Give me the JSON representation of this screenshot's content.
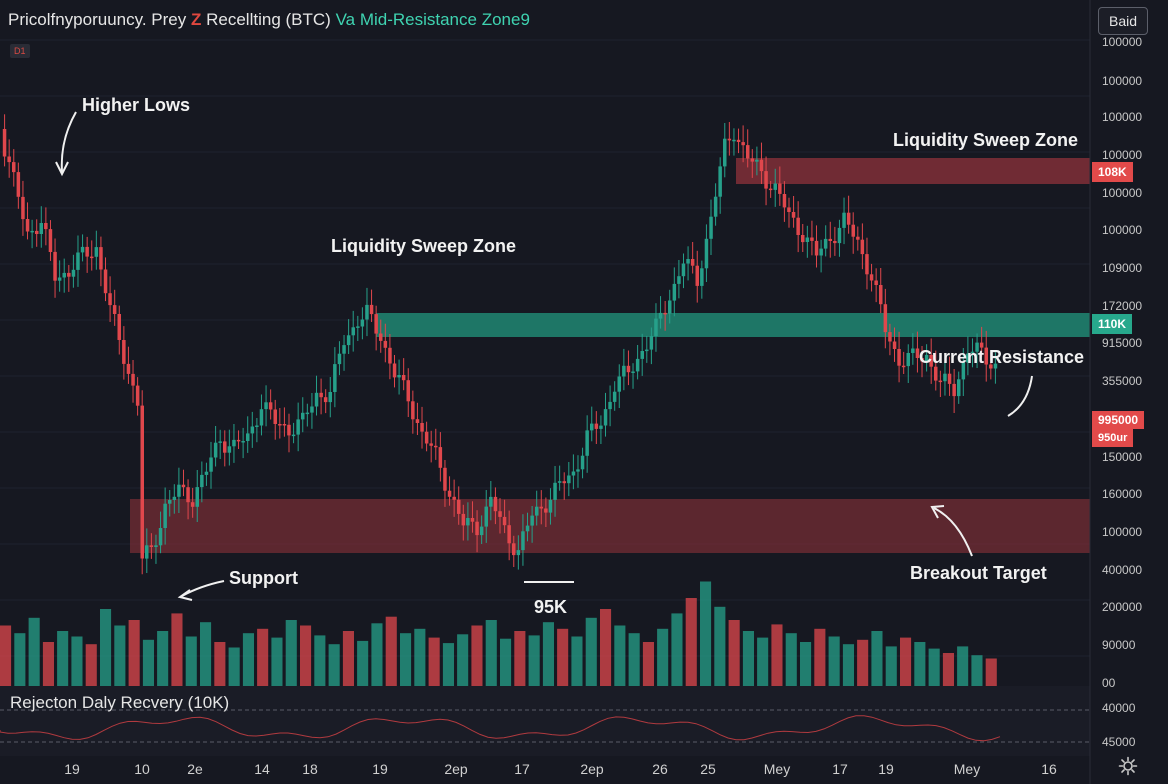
{
  "header": {
    "title_part1": "Pricolfnyporuuncy. Prey",
    "title_z": "Z",
    "title_part2": " Recellting (BTC)",
    "title_part3": " Va Mid-Resistance Zone9",
    "timeframe_badge": "D1",
    "bid_button": "Baid"
  },
  "indicator": {
    "label": "Rejecton Daly Recvery (10K)"
  },
  "annotations": {
    "higher_lows": "Higher Lows",
    "liquidity_sweep_left": "Liquidity Sweep Zone",
    "liquidity_sweep_right": "Liquidity Sweep Zone",
    "current_resistance": "Current Resistance",
    "support": "Support",
    "breakout_target": "Breakout Target",
    "level_95k": "95K"
  },
  "price_tags": {
    "red_top": "108K",
    "green": "110K",
    "current_a": "995000",
    "current_b": "950ur"
  },
  "colors": {
    "background": "#161821",
    "bull": "#26a08a",
    "bear": "#e0474c",
    "zone_red": "#7a2e36",
    "zone_green": "#1f7f6c"
  },
  "chart_data": {
    "type": "candlestick",
    "price_axis_ticks": [
      "100000",
      "100000",
      "100000",
      "100000",
      "100000",
      "100000",
      "109000",
      "172000",
      "915000",
      "355000",
      "995000",
      "150000",
      "160000",
      "100000",
      "400000",
      "200000",
      "90000",
      "00"
    ],
    "indicator_axis_ticks": [
      "40000",
      "45000"
    ],
    "x_ticks": [
      "19",
      "10",
      "2e",
      "14",
      "18",
      "19",
      "2ep",
      "17",
      "2ep",
      "26",
      "25",
      "Mey",
      "17",
      "19",
      "Mey",
      "16"
    ],
    "zones": [
      {
        "name": "Liquidity Sweep Zone (upper)",
        "color": "red",
        "level": "108K"
      },
      {
        "name": "Mid-Resistance",
        "color": "green",
        "level": "110K"
      },
      {
        "name": "Support / Breakout Target",
        "color": "red"
      }
    ],
    "close_path": [
      [
        0,
        0.1
      ],
      [
        3,
        0.21
      ],
      [
        6,
        0.31
      ],
      [
        9,
        0.29
      ],
      [
        12,
        0.4
      ],
      [
        15,
        0.39
      ],
      [
        18,
        0.36
      ],
      [
        21,
        0.34
      ],
      [
        24,
        0.47
      ],
      [
        27,
        0.56
      ],
      [
        30,
        0.66
      ],
      [
        31,
        0.98
      ],
      [
        33,
        0.96
      ],
      [
        36,
        0.87
      ],
      [
        39,
        0.84
      ],
      [
        42,
        0.85
      ],
      [
        45,
        0.8
      ],
      [
        48,
        0.73
      ],
      [
        51,
        0.75
      ],
      [
        54,
        0.73
      ],
      [
        57,
        0.66
      ],
      [
        60,
        0.7
      ],
      [
        63,
        0.71
      ],
      [
        66,
        0.7
      ],
      [
        69,
        0.64
      ],
      [
        72,
        0.64
      ],
      [
        75,
        0.53
      ],
      [
        78,
        0.49
      ],
      [
        80,
        0.48
      ],
      [
        83,
        0.52
      ],
      [
        86,
        0.6
      ],
      [
        89,
        0.65
      ],
      [
        92,
        0.72
      ],
      [
        95,
        0.77
      ],
      [
        98,
        0.84
      ],
      [
        101,
        0.91
      ],
      [
        104,
        0.91
      ],
      [
        107,
        0.86
      ],
      [
        110,
        0.92
      ],
      [
        113,
        0.96
      ],
      [
        116,
        0.89
      ],
      [
        119,
        0.86
      ],
      [
        122,
        0.83
      ],
      [
        125,
        0.8
      ],
      [
        128,
        0.73
      ],
      [
        131,
        0.7
      ],
      [
        134,
        0.62
      ],
      [
        137,
        0.6
      ],
      [
        140,
        0.55
      ],
      [
        143,
        0.51
      ],
      [
        146,
        0.44
      ],
      [
        149,
        0.37
      ],
      [
        152,
        0.41
      ],
      [
        155,
        0.28
      ],
      [
        158,
        0.14
      ],
      [
        160,
        0.1
      ],
      [
        163,
        0.16
      ],
      [
        166,
        0.19
      ],
      [
        169,
        0.22
      ],
      [
        172,
        0.28
      ],
      [
        175,
        0.31
      ],
      [
        178,
        0.36
      ],
      [
        181,
        0.32
      ],
      [
        184,
        0.29
      ],
      [
        187,
        0.33
      ],
      [
        190,
        0.4
      ],
      [
        193,
        0.51
      ],
      [
        196,
        0.57
      ],
      [
        199,
        0.57
      ],
      [
        202,
        0.56
      ],
      [
        205,
        0.62
      ],
      [
        208,
        0.63
      ],
      [
        211,
        0.55
      ],
      [
        214,
        0.56
      ],
      [
        217,
        0.58
      ]
    ],
    "volume": [
      0.55,
      0.48,
      0.62,
      0.4,
      0.5,
      0.45,
      0.38,
      0.7,
      0.55,
      0.6,
      0.42,
      0.5,
      0.66,
      0.45,
      0.58,
      0.4,
      0.35,
      0.48,
      0.52,
      0.44,
      0.6,
      0.55,
      0.46,
      0.38,
      0.5,
      0.41,
      0.57,
      0.63,
      0.48,
      0.52,
      0.44,
      0.39,
      0.47,
      0.55,
      0.6,
      0.43,
      0.5,
      0.46,
      0.58,
      0.52,
      0.45,
      0.62,
      0.7,
      0.55,
      0.48,
      0.4,
      0.52,
      0.66,
      0.8,
      0.95,
      0.72,
      0.6,
      0.5,
      0.44,
      0.56,
      0.48,
      0.4,
      0.52,
      0.45,
      0.38,
      0.42,
      0.5,
      0.36,
      0.44,
      0.4,
      0.34,
      0.3,
      0.36,
      0.28,
      0.25
    ]
  }
}
